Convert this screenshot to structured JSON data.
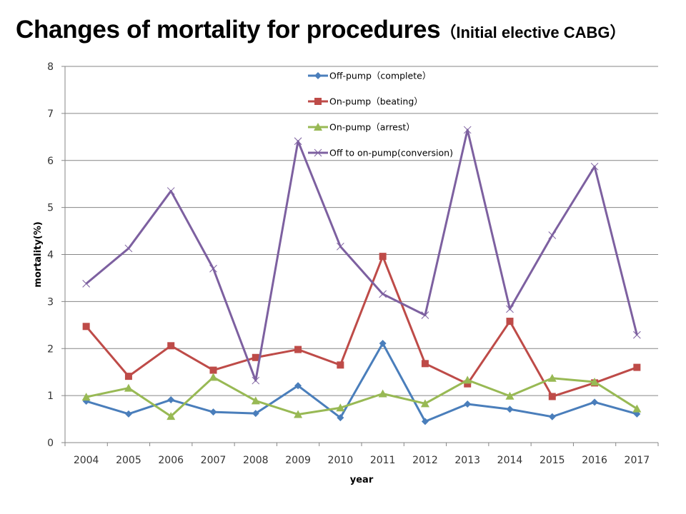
{
  "chart_data": {
    "type": "line",
    "title": "Changes of mortality for procedures",
    "subtitle": "（Initial elective CABG）",
    "xlabel": "year",
    "ylabel": "mortality(%)",
    "ylim": [
      0,
      8
    ],
    "yticks": [
      0,
      1,
      2,
      3,
      4,
      5,
      6,
      7,
      8
    ],
    "grid": true,
    "legend_position": "top-center",
    "categories": [
      "2004",
      "2005",
      "2006",
      "2007",
      "2008",
      "2009",
      "2010",
      "2011",
      "2012",
      "2013",
      "2014",
      "2015",
      "2016",
      "2017"
    ],
    "series": [
      {
        "name": "Off-pump（complete）",
        "color": "#4a7ebb",
        "marker": "diamond",
        "values": [
          0.88,
          0.61,
          0.91,
          0.65,
          0.62,
          1.21,
          0.53,
          2.11,
          0.45,
          0.82,
          0.71,
          0.55,
          0.86,
          0.61
        ]
      },
      {
        "name": "On-pump（beating）",
        "color": "#be4b48",
        "marker": "square",
        "values": [
          2.47,
          1.41,
          2.06,
          1.54,
          1.81,
          1.98,
          1.65,
          3.96,
          1.68,
          1.25,
          2.58,
          0.98,
          1.27,
          1.6
        ]
      },
      {
        "name": "On-pump（arrest）",
        "color": "#98b954",
        "marker": "triangle",
        "values": [
          0.97,
          1.16,
          0.56,
          1.39,
          0.89,
          0.6,
          0.74,
          1.04,
          0.83,
          1.33,
          0.99,
          1.37,
          1.29,
          0.72
        ]
      },
      {
        "name": "Off to on-pump(conversion)",
        "color": "#7d60a0",
        "marker": "x",
        "values": [
          3.38,
          4.13,
          5.35,
          3.7,
          1.32,
          6.41,
          4.17,
          3.16,
          2.71,
          6.65,
          2.84,
          4.41,
          5.87,
          2.29
        ]
      }
    ]
  }
}
